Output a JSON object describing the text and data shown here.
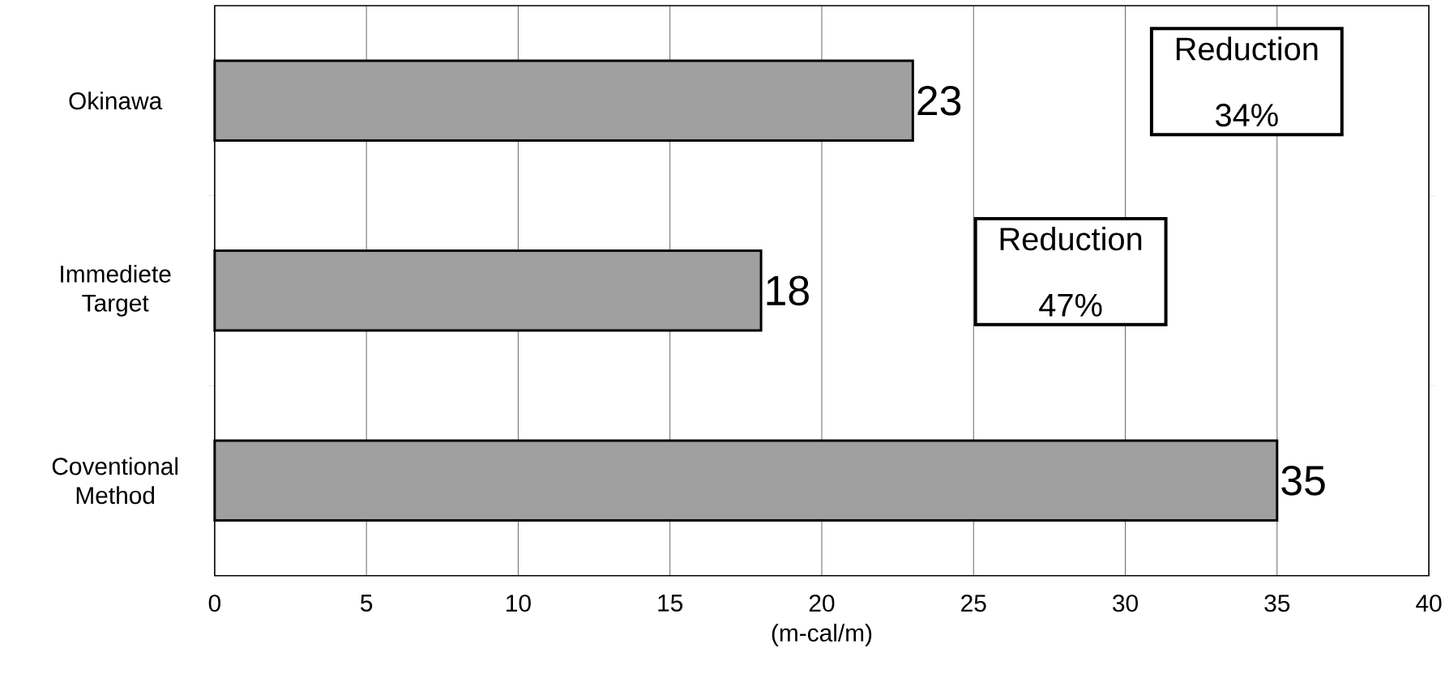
{
  "chart_data": {
    "type": "bar",
    "orientation": "horizontal",
    "xlabel": "(m-cal/m)",
    "categories": [
      "Okinawa",
      "Immediete Target",
      "Coventional Method"
    ],
    "values": [
      23,
      18,
      35
    ],
    "color": "#a0a0a0",
    "xlim": [
      0,
      40
    ],
    "xticks": [
      0,
      5,
      10,
      15,
      20,
      25,
      30,
      35,
      40
    ],
    "grid": "x",
    "data_labels": true,
    "annotations": [
      "Reduction 34%",
      "Reduction 47%"
    ]
  }
}
